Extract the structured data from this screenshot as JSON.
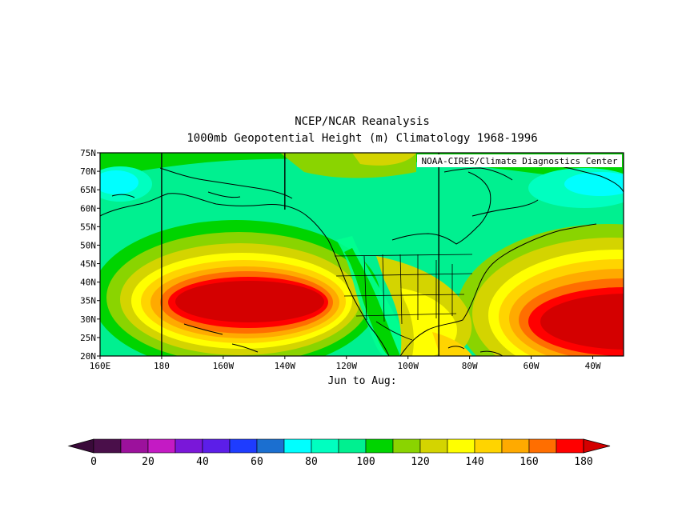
{
  "header": {
    "title": "NCEP/NCAR Reanalysis",
    "subtitle": "1000mb Geopotential Height (m) Climatology 1968-1996",
    "credit": "NOAA-CIRES/Climate Diagnostics Center"
  },
  "period_label": "Jun to Aug:",
  "map": {
    "lat_labels": [
      "75N",
      "70N",
      "65N",
      "60N",
      "55N",
      "50N",
      "45N",
      "40N",
      "35N",
      "30N",
      "25N",
      "20N"
    ],
    "lon_labels": [
      "160E",
      "180",
      "160W",
      "140W",
      "120W",
      "100W",
      "80W",
      "60W",
      "40W"
    ],
    "lat_range": [
      20,
      75
    ],
    "lon_range": [
      "160E",
      "30W"
    ],
    "grid_meridians": [
      "180",
      "140W",
      "90W"
    ]
  },
  "colorbar": {
    "tick_labels": [
      "0",
      "20",
      "40",
      "60",
      "80",
      "100",
      "120",
      "140",
      "160",
      "180"
    ],
    "range": [
      0,
      180
    ],
    "step": 10,
    "colors": [
      "#4a0f4a",
      "#9c119c",
      "#c41ac4",
      "#7a17d9",
      "#5c1ee8",
      "#1e3cff",
      "#1b6fd0",
      "#00ffff",
      "#00ffc0",
      "#00f090",
      "#00d400",
      "#8ad400",
      "#d4d400",
      "#ffff00",
      "#ffd400",
      "#ffaa00",
      "#ff6e00",
      "#ff0000"
    ],
    "under_color": "#3a0a3a",
    "over_color": "#d40000"
  }
}
